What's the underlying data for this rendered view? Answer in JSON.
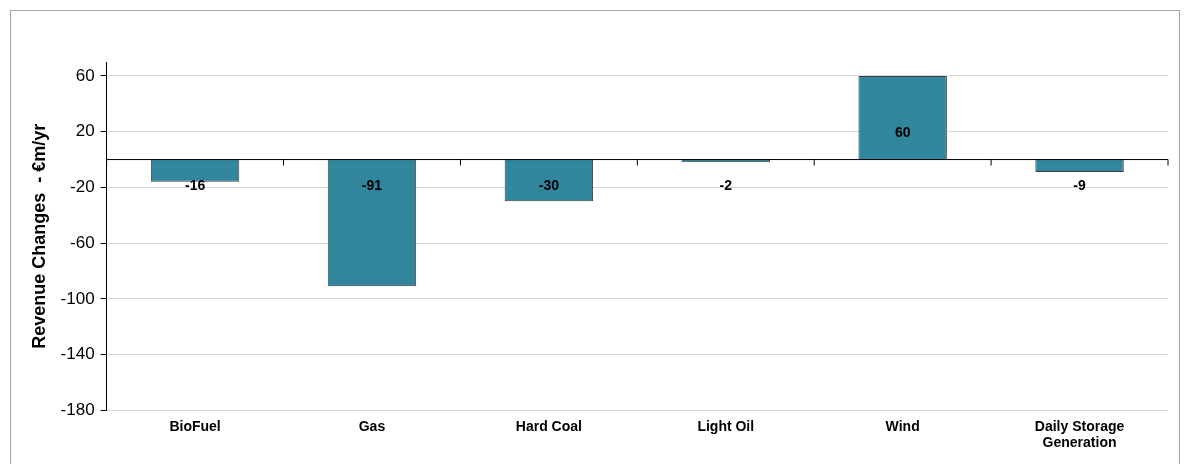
{
  "chart_data": {
    "type": "bar",
    "ylabel": "Revenue Changes  - €m/yr",
    "categories": [
      "BioFuel",
      "Gas",
      "Hard Coal",
      "Light Oil",
      "Wind",
      "Daily Storage Generation"
    ],
    "values": [
      -16,
      -91,
      -30,
      -2,
      60,
      -9
    ],
    "color": "#31859c",
    "ylim": [
      -180,
      70
    ],
    "yticks": [
      -180,
      -140,
      -100,
      -60,
      -20,
      20,
      60
    ],
    "grid": "y",
    "data_labels": true
  }
}
